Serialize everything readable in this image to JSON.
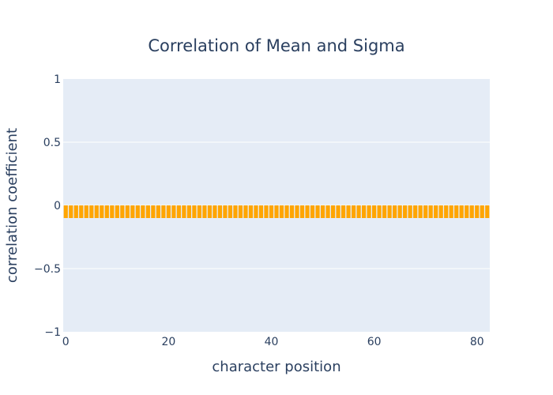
{
  "chart_data": {
    "type": "bar",
    "title": "Correlation of Mean and Sigma",
    "xlabel": "character position",
    "ylabel": "correlation coefficient",
    "xlim": [
      -0.5,
      82.5
    ],
    "ylim": [
      -1,
      1
    ],
    "x_ticks": [
      0,
      20,
      40,
      60,
      80
    ],
    "x_tick_labels": [
      "0",
      "20",
      "40",
      "60",
      "80"
    ],
    "y_ticks": [
      1,
      0.5,
      0,
      -0.5,
      -1
    ],
    "y_tick_labels": [
      "1",
      "0.5",
      "0",
      "−0.5",
      "−1"
    ],
    "bar_color": "#FFA500",
    "plot_bg": "#E5ECF6",
    "grid": true,
    "series": [
      {
        "values": [
          -0.1,
          -0.1,
          -0.1,
          -0.1,
          -0.1,
          -0.1,
          -0.1,
          -0.1,
          -0.1,
          -0.1,
          -0.1,
          -0.1,
          -0.1,
          -0.1,
          -0.1,
          -0.1,
          -0.1,
          -0.1,
          -0.1,
          -0.1,
          -0.1,
          -0.1,
          -0.1,
          -0.1,
          -0.1,
          -0.1,
          -0.1,
          -0.1,
          -0.1,
          -0.1,
          -0.1,
          -0.1,
          -0.1,
          -0.1,
          -0.1,
          -0.1,
          -0.1,
          -0.1,
          -0.1,
          -0.1,
          -0.1,
          -0.1,
          -0.1,
          -0.1,
          -0.1,
          -0.1,
          -0.1,
          -0.1,
          -0.1,
          -0.1,
          -0.1,
          -0.1,
          -0.1,
          -0.1,
          -0.1,
          -0.1,
          -0.1,
          -0.1,
          -0.1,
          -0.1,
          -0.1,
          -0.1,
          -0.1,
          -0.1,
          -0.1,
          -0.1,
          -0.1,
          -0.1,
          -0.1,
          -0.1,
          -0.1,
          -0.1,
          -0.1,
          -0.1,
          -0.1,
          -0.1,
          -0.1,
          -0.1,
          -0.1,
          -0.1,
          -0.1,
          -0.1,
          -0.1
        ]
      }
    ]
  }
}
